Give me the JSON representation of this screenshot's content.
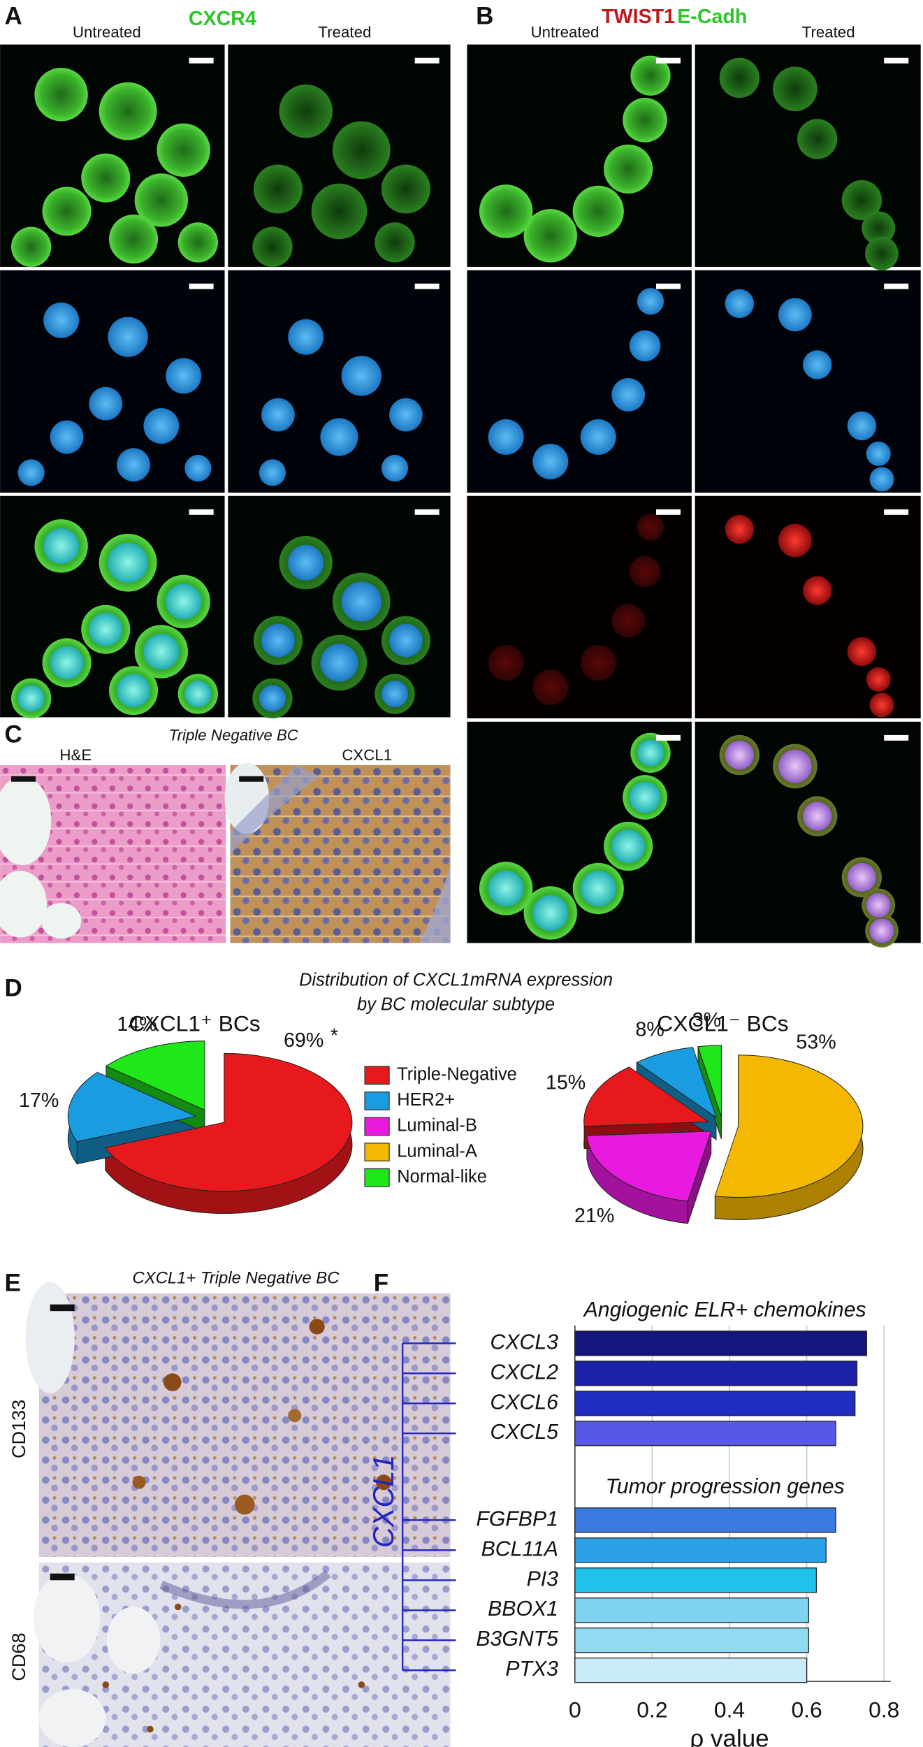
{
  "panels": {
    "A": {
      "label": "A",
      "untreated": "Untreated",
      "marker": "CXCR4",
      "treated": "Treated"
    },
    "B": {
      "label": "B",
      "untreated": "Untreated",
      "marker1": "TWIST1",
      "marker2": "E-Cadh",
      "treated": "Treated"
    },
    "C": {
      "label": "C",
      "title": "Triple Negative BC",
      "left": "H&E",
      "right": "CXCL1"
    },
    "D": {
      "label": "D",
      "title_lines": [
        "Distribution of CXCL1mRNA expression",
        "by BC molecular subtype"
      ],
      "legend": [
        {
          "name": "Triple-Negative",
          "color": "#e8191c"
        },
        {
          "name": "HER2+",
          "color": "#1a9de0"
        },
        {
          "name": "Luminal-B",
          "color": "#e81ae0"
        },
        {
          "name": "Luminal-A",
          "color": "#f5b800"
        },
        {
          "name": "Normal-like",
          "color": "#1ee81a"
        }
      ]
    },
    "E": {
      "label": "E",
      "title": "CXCL1+ Triple Negative BC",
      "top": "CD133",
      "bottom": "CD68"
    },
    "F": {
      "label": "F",
      "group_label": "CXCL1"
    }
  },
  "chart_data": [
    {
      "type": "pie",
      "title": "CXCL1⁺ BCs",
      "categories": [
        "Triple-Negative",
        "HER2+",
        "Normal-like"
      ],
      "values": [
        69,
        17,
        14
      ],
      "value_labels": [
        "69%",
        "17%",
        "14%"
      ],
      "colors": [
        "#e8191c",
        "#1a9de0",
        "#1ee81a"
      ],
      "annotation": "*"
    },
    {
      "type": "pie",
      "title": "CXCL1⁻ BCs",
      "categories": [
        "Luminal-A",
        "Luminal-B",
        "Triple-Negative",
        "HER2+",
        "Normal-like"
      ],
      "values": [
        53,
        21,
        15,
        8,
        3
      ],
      "value_labels": [
        "53%",
        "21%",
        "15%",
        "8%",
        "3%"
      ],
      "colors": [
        "#f5b800",
        "#e81ae0",
        "#e8191c",
        "#1a9de0",
        "#1ee81a"
      ]
    },
    {
      "type": "bar",
      "orientation": "horizontal",
      "xlabel": "ρ value",
      "xlim": [
        0,
        0.8
      ],
      "xticks": [
        0,
        0.2,
        0.4,
        0.6,
        0.8
      ],
      "grid": true,
      "groups": [
        {
          "title": "Angiogenic ELR+ chemokines",
          "categories": [
            "CXCL3",
            "CXCL2",
            "CXCL6",
            "CXCL5"
          ],
          "values": [
            0.755,
            0.73,
            0.725,
            0.675
          ],
          "colors": [
            "#15157e",
            "#1c22a8",
            "#1f2ec0",
            "#5858e6"
          ]
        },
        {
          "title": "Tumor progression genes",
          "categories": [
            "FGFBP1",
            "BCL11A",
            "PI3",
            "BBOX1",
            "B3GNT5",
            "PTX3"
          ],
          "values": [
            0.675,
            0.65,
            0.625,
            0.605,
            0.605,
            0.6
          ],
          "colors": [
            "#3a7ae0",
            "#2aa0e6",
            "#1ec2ea",
            "#7fd2f0",
            "#92daf2",
            "#c9ecf8"
          ]
        }
      ]
    }
  ]
}
